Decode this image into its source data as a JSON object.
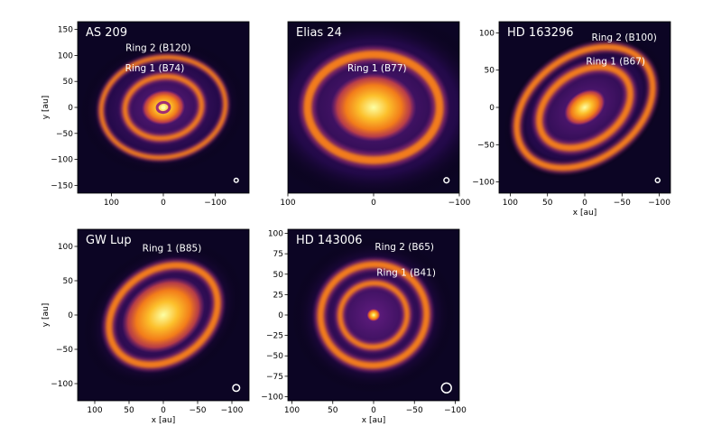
{
  "figure": {
    "panels": [
      {
        "id": "as209",
        "title": "AS 209",
        "xlabel": "",
        "ylabel": "y [au]",
        "xlim": [
          165,
          -165
        ],
        "ylim": [
          -165,
          165
        ],
        "xticks": [
          100,
          0,
          -100
        ],
        "yticks": [
          150,
          100,
          50,
          0,
          -50,
          -100,
          -150
        ],
        "rings": [
          {
            "label": "Ring 1 (B74)",
            "radius_au": 74
          },
          {
            "label": "Ring 2 (B120)",
            "radius_au": 120
          }
        ],
        "image": {
          "inclination_ratio": 0.8,
          "core_radius_au": 42,
          "gap_radii_au": [
            12
          ],
          "ring_radii_au": [
            74,
            120
          ],
          "ring_widths_au": [
            12,
            10
          ],
          "halo_radius_au": 160,
          "beam_au": 4
        }
      },
      {
        "id": "elias24",
        "title": "Elias 24",
        "xlabel": "",
        "ylabel": "",
        "xlim": [
          100,
          -100
        ],
        "ylim": [
          -100,
          100
        ],
        "xticks": [
          100,
          0,
          -100
        ],
        "yticks": [],
        "rings": [
          {
            "label": "Ring 1 (B77)",
            "radius_au": 77
          }
        ],
        "image": {
          "inclination_ratio": 0.8,
          "core_radius_au": 50,
          "gap_radii_au": [],
          "ring_radii_au": [
            77
          ],
          "ring_widths_au": [
            12
          ],
          "halo_radius_au": 140,
          "beam_au": 3
        }
      },
      {
        "id": "hd163296",
        "title": "HD 163296",
        "xlabel": "x [au]",
        "ylabel": "",
        "xlim": [
          115,
          -115
        ],
        "ylim": [
          -115,
          115
        ],
        "xticks": [
          100,
          50,
          0,
          -50,
          -100
        ],
        "yticks": [
          100,
          50,
          0,
          -50,
          -100
        ],
        "rings": [
          {
            "label": "Ring 1 (B67)",
            "radius_au": 67
          },
          {
            "label": "Ring 2 (B100)",
            "radius_au": 100
          }
        ],
        "image": {
          "inclination_ratio": 0.7,
          "core_radius_au": 30,
          "gap_radii_au": [],
          "ring_radii_au": [
            67,
            100
          ],
          "ring_widths_au": [
            11,
            10
          ],
          "halo_radius_au": 120,
          "beam_au": 3
        }
      },
      {
        "id": "gwlup",
        "title": "GW Lup",
        "xlabel": "x [au]",
        "ylabel": "y [au]",
        "xlim": [
          125,
          -125
        ],
        "ylim": [
          -125,
          125
        ],
        "xticks": [
          100,
          50,
          0,
          -50,
          -100
        ],
        "yticks": [
          100,
          50,
          0,
          -50,
          -100
        ],
        "rings": [
          {
            "label": "Ring 1 (B85)",
            "radius_au": 85
          }
        ],
        "image": {
          "inclination_ratio": 0.77,
          "core_radius_au": 65,
          "gap_radii_au": [],
          "ring_radii_au": [
            85
          ],
          "ring_widths_au": [
            12
          ],
          "halo_radius_au": 125,
          "beam_au": 5
        }
      },
      {
        "id": "hd143006",
        "title": "HD 143006",
        "xlabel": "x [au]",
        "ylabel": "",
        "xlim": [
          105,
          -105
        ],
        "ylim": [
          -105,
          105
        ],
        "xticks": [
          100,
          50,
          0,
          -50,
          -100
        ],
        "yticks": [
          100,
          75,
          50,
          25,
          0,
          -25,
          -50,
          -75,
          -100
        ],
        "rings": [
          {
            "label": "Ring 1 (B41)",
            "radius_au": 41
          },
          {
            "label": "Ring 2 (B65)",
            "radius_au": 65
          }
        ],
        "image": {
          "inclination_ratio": 0.95,
          "core_radius_au": 8,
          "gap_radii_au": [],
          "ring_radii_au": [
            41,
            65
          ],
          "ring_widths_au": [
            8,
            10
          ],
          "halo_radius_au": 100,
          "beam_au": 6
        }
      }
    ],
    "colors": {
      "background": "#0c0524",
      "colormap": [
        "#000004",
        "#2c0b58",
        "#6b1f8a",
        "#a12e75",
        "#d44842",
        "#f27c1a",
        "#fcbf2b",
        "#fcffa4"
      ]
    }
  }
}
